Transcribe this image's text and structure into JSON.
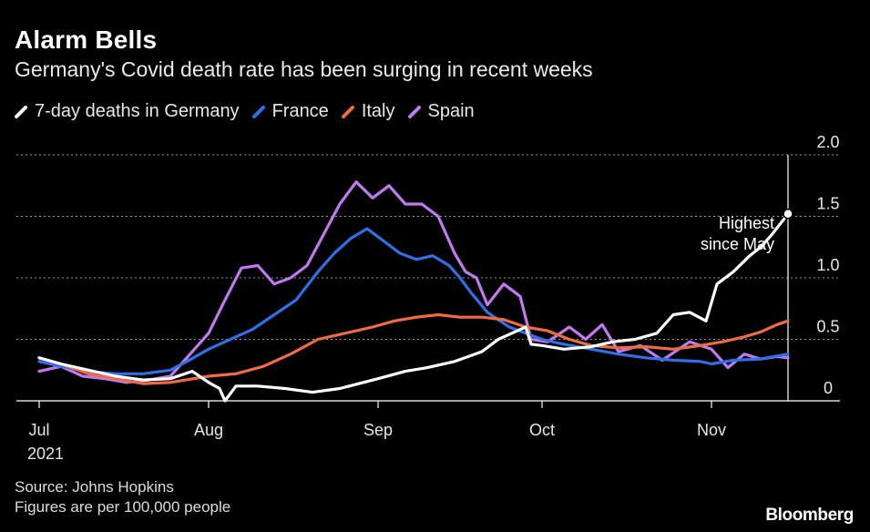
{
  "title": "Alarm Bells",
  "subtitle": "Germany's Covid death rate has been surging in recent weeks",
  "legend": [
    {
      "label": "7-day deaths in Germany",
      "color": "#ffffff"
    },
    {
      "label": "France",
      "color": "#2f6fe8"
    },
    {
      "label": "Italy",
      "color": "#f06a44"
    },
    {
      "label": "Spain",
      "color": "#c07af0"
    }
  ],
  "footer": {
    "source": "Source: Johns Hopkins",
    "note": "Figures are per 100,000 people"
  },
  "brand": "Bloomberg",
  "chart_data": {
    "type": "line",
    "title": "Alarm Bells",
    "subtitle": "Germany's Covid death rate has been surging in recent weeks",
    "ylim": [
      0,
      2.0
    ],
    "yticks": [
      0,
      0.5,
      1.0,
      1.5,
      2.0
    ],
    "ytick_labels": [
      "0",
      "0.5",
      "1.0",
      "1.5",
      "2.0"
    ],
    "y_axis_side": "right",
    "grid": "dotted horizontal",
    "xlim": [
      "2021-07-01",
      "2021-11-15"
    ],
    "x_ticks": [
      {
        "date": "2021-07-01",
        "label": "Jul",
        "sublabel": "2021"
      },
      {
        "date": "2021-08-01",
        "label": "Aug"
      },
      {
        "date": "2021-09-01",
        "label": "Sep"
      },
      {
        "date": "2021-10-01",
        "label": "Oct"
      },
      {
        "date": "2021-11-01",
        "label": "Nov"
      }
    ],
    "legend_position": "top-left",
    "annotation": {
      "text": [
        "Highest",
        "since May"
      ],
      "date": "2021-11-15",
      "value": 1.52
    },
    "series": [
      {
        "name": "7-day deaths in Germany",
        "color": "#ffffff",
        "points": [
          [
            "2021-07-01",
            0.35
          ],
          [
            "2021-07-05",
            0.3
          ],
          [
            "2021-07-10",
            0.25
          ],
          [
            "2021-07-15",
            0.2
          ],
          [
            "2021-07-20",
            0.17
          ],
          [
            "2021-07-25",
            0.18
          ],
          [
            "2021-07-29",
            0.24
          ],
          [
            "2021-08-01",
            0.15
          ],
          [
            "2021-08-03",
            0.1
          ],
          [
            "2021-08-04",
            0.0
          ],
          [
            "2021-08-06",
            0.12
          ],
          [
            "2021-08-10",
            0.12
          ],
          [
            "2021-08-15",
            0.1
          ],
          [
            "2021-08-20",
            0.07
          ],
          [
            "2021-08-25",
            0.1
          ],
          [
            "2021-09-01",
            0.18
          ],
          [
            "2021-09-06",
            0.24
          ],
          [
            "2021-09-10",
            0.27
          ],
          [
            "2021-09-15",
            0.32
          ],
          [
            "2021-09-20",
            0.4
          ],
          [
            "2021-09-23",
            0.5
          ],
          [
            "2021-09-26",
            0.56
          ],
          [
            "2021-09-27",
            0.58
          ],
          [
            "2021-09-28",
            0.6
          ],
          [
            "2021-09-29",
            0.46
          ],
          [
            "2021-10-01",
            0.45
          ],
          [
            "2021-10-05",
            0.42
          ],
          [
            "2021-10-10",
            0.44
          ],
          [
            "2021-10-14",
            0.48
          ],
          [
            "2021-10-18",
            0.5
          ],
          [
            "2021-10-22",
            0.55
          ],
          [
            "2021-10-25",
            0.7
          ],
          [
            "2021-10-28",
            0.72
          ],
          [
            "2021-10-31",
            0.65
          ],
          [
            "2021-11-02",
            0.95
          ],
          [
            "2021-11-05",
            1.05
          ],
          [
            "2021-11-08",
            1.18
          ],
          [
            "2021-11-10",
            1.25
          ],
          [
            "2021-11-12",
            1.35
          ],
          [
            "2021-11-15",
            1.52
          ]
        ]
      },
      {
        "name": "France",
        "color": "#2f6fe8",
        "points": [
          [
            "2021-07-01",
            0.32
          ],
          [
            "2021-07-05",
            0.28
          ],
          [
            "2021-07-10",
            0.24
          ],
          [
            "2021-07-15",
            0.22
          ],
          [
            "2021-07-20",
            0.22
          ],
          [
            "2021-07-25",
            0.25
          ],
          [
            "2021-07-28",
            0.32
          ],
          [
            "2021-08-01",
            0.42
          ],
          [
            "2021-08-05",
            0.5
          ],
          [
            "2021-08-09",
            0.58
          ],
          [
            "2021-08-13",
            0.7
          ],
          [
            "2021-08-17",
            0.82
          ],
          [
            "2021-08-21",
            1.05
          ],
          [
            "2021-08-24",
            1.2
          ],
          [
            "2021-08-27",
            1.32
          ],
          [
            "2021-08-30",
            1.4
          ],
          [
            "2021-09-02",
            1.3
          ],
          [
            "2021-09-05",
            1.2
          ],
          [
            "2021-09-08",
            1.15
          ],
          [
            "2021-09-11",
            1.18
          ],
          [
            "2021-09-14",
            1.1
          ],
          [
            "2021-09-16",
            1.0
          ],
          [
            "2021-09-18",
            0.88
          ],
          [
            "2021-09-21",
            0.72
          ],
          [
            "2021-09-25",
            0.6
          ],
          [
            "2021-09-28",
            0.55
          ],
          [
            "2021-10-01",
            0.5
          ],
          [
            "2021-10-05",
            0.46
          ],
          [
            "2021-10-10",
            0.42
          ],
          [
            "2021-10-15",
            0.38
          ],
          [
            "2021-10-20",
            0.35
          ],
          [
            "2021-10-25",
            0.33
          ],
          [
            "2021-10-30",
            0.32
          ],
          [
            "2021-11-01",
            0.3
          ],
          [
            "2021-11-05",
            0.33
          ],
          [
            "2021-11-10",
            0.34
          ],
          [
            "2021-11-15",
            0.38
          ]
        ]
      },
      {
        "name": "Italy",
        "color": "#f06a44",
        "points": [
          [
            "2021-07-01",
            0.35
          ],
          [
            "2021-07-05",
            0.3
          ],
          [
            "2021-07-10",
            0.22
          ],
          [
            "2021-07-15",
            0.18
          ],
          [
            "2021-07-20",
            0.14
          ],
          [
            "2021-07-25",
            0.15
          ],
          [
            "2021-08-01",
            0.2
          ],
          [
            "2021-08-06",
            0.22
          ],
          [
            "2021-08-11",
            0.28
          ],
          [
            "2021-08-16",
            0.38
          ],
          [
            "2021-08-21",
            0.5
          ],
          [
            "2021-08-26",
            0.55
          ],
          [
            "2021-08-31",
            0.6
          ],
          [
            "2021-09-04",
            0.65
          ],
          [
            "2021-09-08",
            0.68
          ],
          [
            "2021-09-12",
            0.7
          ],
          [
            "2021-09-16",
            0.68
          ],
          [
            "2021-09-20",
            0.68
          ],
          [
            "2021-09-24",
            0.66
          ],
          [
            "2021-09-28",
            0.6
          ],
          [
            "2021-10-02",
            0.57
          ],
          [
            "2021-10-06",
            0.5
          ],
          [
            "2021-10-10",
            0.45
          ],
          [
            "2021-10-15",
            0.43
          ],
          [
            "2021-10-20",
            0.44
          ],
          [
            "2021-10-25",
            0.42
          ],
          [
            "2021-10-30",
            0.45
          ],
          [
            "2021-11-03",
            0.48
          ],
          [
            "2021-11-07",
            0.52
          ],
          [
            "2021-11-10",
            0.56
          ],
          [
            "2021-11-13",
            0.62
          ],
          [
            "2021-11-15",
            0.65
          ]
        ]
      },
      {
        "name": "Spain",
        "color": "#c07af0",
        "points": [
          [
            "2021-07-01",
            0.24
          ],
          [
            "2021-07-05",
            0.28
          ],
          [
            "2021-07-09",
            0.2
          ],
          [
            "2021-07-13",
            0.18
          ],
          [
            "2021-07-17",
            0.15
          ],
          [
            "2021-07-21",
            0.17
          ],
          [
            "2021-07-25",
            0.2
          ],
          [
            "2021-07-28",
            0.35
          ],
          [
            "2021-08-01",
            0.55
          ],
          [
            "2021-08-04",
            0.82
          ],
          [
            "2021-08-07",
            1.08
          ],
          [
            "2021-08-10",
            1.1
          ],
          [
            "2021-08-13",
            0.95
          ],
          [
            "2021-08-16",
            1.0
          ],
          [
            "2021-08-19",
            1.1
          ],
          [
            "2021-08-22",
            1.35
          ],
          [
            "2021-08-25",
            1.6
          ],
          [
            "2021-08-28",
            1.78
          ],
          [
            "2021-08-31",
            1.65
          ],
          [
            "2021-09-03",
            1.75
          ],
          [
            "2021-09-06",
            1.6
          ],
          [
            "2021-09-09",
            1.6
          ],
          [
            "2021-09-12",
            1.5
          ],
          [
            "2021-09-15",
            1.2
          ],
          [
            "2021-09-17",
            1.05
          ],
          [
            "2021-09-19",
            1.0
          ],
          [
            "2021-09-21",
            0.78
          ],
          [
            "2021-09-24",
            0.95
          ],
          [
            "2021-09-27",
            0.85
          ],
          [
            "2021-09-29",
            0.5
          ],
          [
            "2021-10-02",
            0.48
          ],
          [
            "2021-10-06",
            0.6
          ],
          [
            "2021-10-09",
            0.5
          ],
          [
            "2021-10-12",
            0.62
          ],
          [
            "2021-10-15",
            0.4
          ],
          [
            "2021-10-19",
            0.45
          ],
          [
            "2021-10-23",
            0.33
          ],
          [
            "2021-10-28",
            0.48
          ],
          [
            "2021-11-01",
            0.42
          ],
          [
            "2021-11-04",
            0.27
          ],
          [
            "2021-11-07",
            0.38
          ],
          [
            "2021-11-10",
            0.34
          ],
          [
            "2021-11-13",
            0.36
          ],
          [
            "2021-11-15",
            0.35
          ]
        ]
      }
    ]
  }
}
